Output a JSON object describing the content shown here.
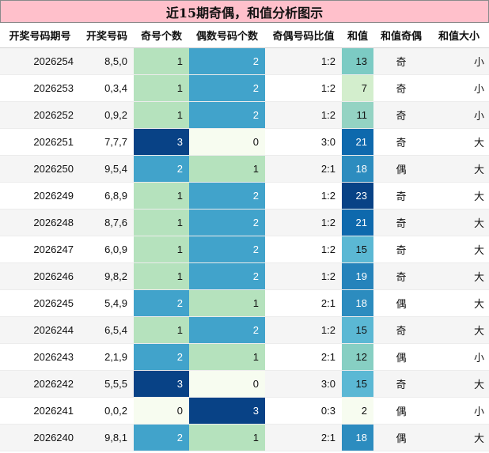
{
  "title": "近15期奇偶，和值分析图示",
  "headers": [
    "开奖号码期号",
    "开奖号码",
    "奇号个数",
    "偶数号码个数",
    "奇偶号码比值",
    "和值",
    "和值奇偶",
    "和值大小"
  ],
  "rows": [
    {
      "period": "2026254",
      "numbers": "8,5,0",
      "odd": "1",
      "even": "2",
      "ratio": "1:2",
      "sum": "13",
      "sum_parity": "奇",
      "sum_size": "小"
    },
    {
      "period": "2026253",
      "numbers": "0,3,4",
      "odd": "1",
      "even": "2",
      "ratio": "1:2",
      "sum": "7",
      "sum_parity": "奇",
      "sum_size": "小"
    },
    {
      "period": "2026252",
      "numbers": "0,9,2",
      "odd": "1",
      "even": "2",
      "ratio": "1:2",
      "sum": "11",
      "sum_parity": "奇",
      "sum_size": "小"
    },
    {
      "period": "2026251",
      "numbers": "7,7,7",
      "odd": "3",
      "even": "0",
      "ratio": "3:0",
      "sum": "21",
      "sum_parity": "奇",
      "sum_size": "大"
    },
    {
      "period": "2026250",
      "numbers": "9,5,4",
      "odd": "2",
      "even": "1",
      "ratio": "2:1",
      "sum": "18",
      "sum_parity": "偶",
      "sum_size": "大"
    },
    {
      "period": "2026249",
      "numbers": "6,8,9",
      "odd": "1",
      "even": "2",
      "ratio": "1:2",
      "sum": "23",
      "sum_parity": "奇",
      "sum_size": "大"
    },
    {
      "period": "2026248",
      "numbers": "8,7,6",
      "odd": "1",
      "even": "2",
      "ratio": "1:2",
      "sum": "21",
      "sum_parity": "奇",
      "sum_size": "大"
    },
    {
      "period": "2026247",
      "numbers": "6,0,9",
      "odd": "1",
      "even": "2",
      "ratio": "1:2",
      "sum": "15",
      "sum_parity": "奇",
      "sum_size": "大"
    },
    {
      "period": "2026246",
      "numbers": "9,8,2",
      "odd": "1",
      "even": "2",
      "ratio": "1:2",
      "sum": "19",
      "sum_parity": "奇",
      "sum_size": "大"
    },
    {
      "period": "2026245",
      "numbers": "5,4,9",
      "odd": "2",
      "even": "1",
      "ratio": "2:1",
      "sum": "18",
      "sum_parity": "偶",
      "sum_size": "大"
    },
    {
      "period": "2026244",
      "numbers": "6,5,4",
      "odd": "1",
      "even": "2",
      "ratio": "1:2",
      "sum": "15",
      "sum_parity": "奇",
      "sum_size": "大"
    },
    {
      "period": "2026243",
      "numbers": "2,1,9",
      "odd": "2",
      "even": "1",
      "ratio": "2:1",
      "sum": "12",
      "sum_parity": "偶",
      "sum_size": "小"
    },
    {
      "period": "2026242",
      "numbers": "5,5,5",
      "odd": "3",
      "even": "0",
      "ratio": "3:0",
      "sum": "15",
      "sum_parity": "奇",
      "sum_size": "大"
    },
    {
      "period": "2026241",
      "numbers": "0,0,2",
      "odd": "0",
      "even": "3",
      "ratio": "0:3",
      "sum": "2",
      "sum_parity": "偶",
      "sum_size": "小"
    },
    {
      "period": "2026240",
      "numbers": "9,8,1",
      "odd": "2",
      "even": "1",
      "ratio": "2:1",
      "sum": "18",
      "sum_parity": "偶",
      "sum_size": "大"
    }
  ],
  "colors": {
    "title_bg": "#ffc0cb",
    "count_scale": {
      "0": "#f7fcf0",
      "1": "#b5e2bd",
      "2": "#41a3cb",
      "3": "#084286"
    },
    "sum_scale": {
      "2": "#f7fcf0",
      "7": "#d3eecd",
      "11": "#94d3c3",
      "12": "#87cfc3",
      "13": "#7ccbc4",
      "15": "#5bb8d4",
      "18": "#2c8cbf",
      "19": "#2583bb",
      "21": "#0e69ad",
      "23": "#084286"
    }
  }
}
